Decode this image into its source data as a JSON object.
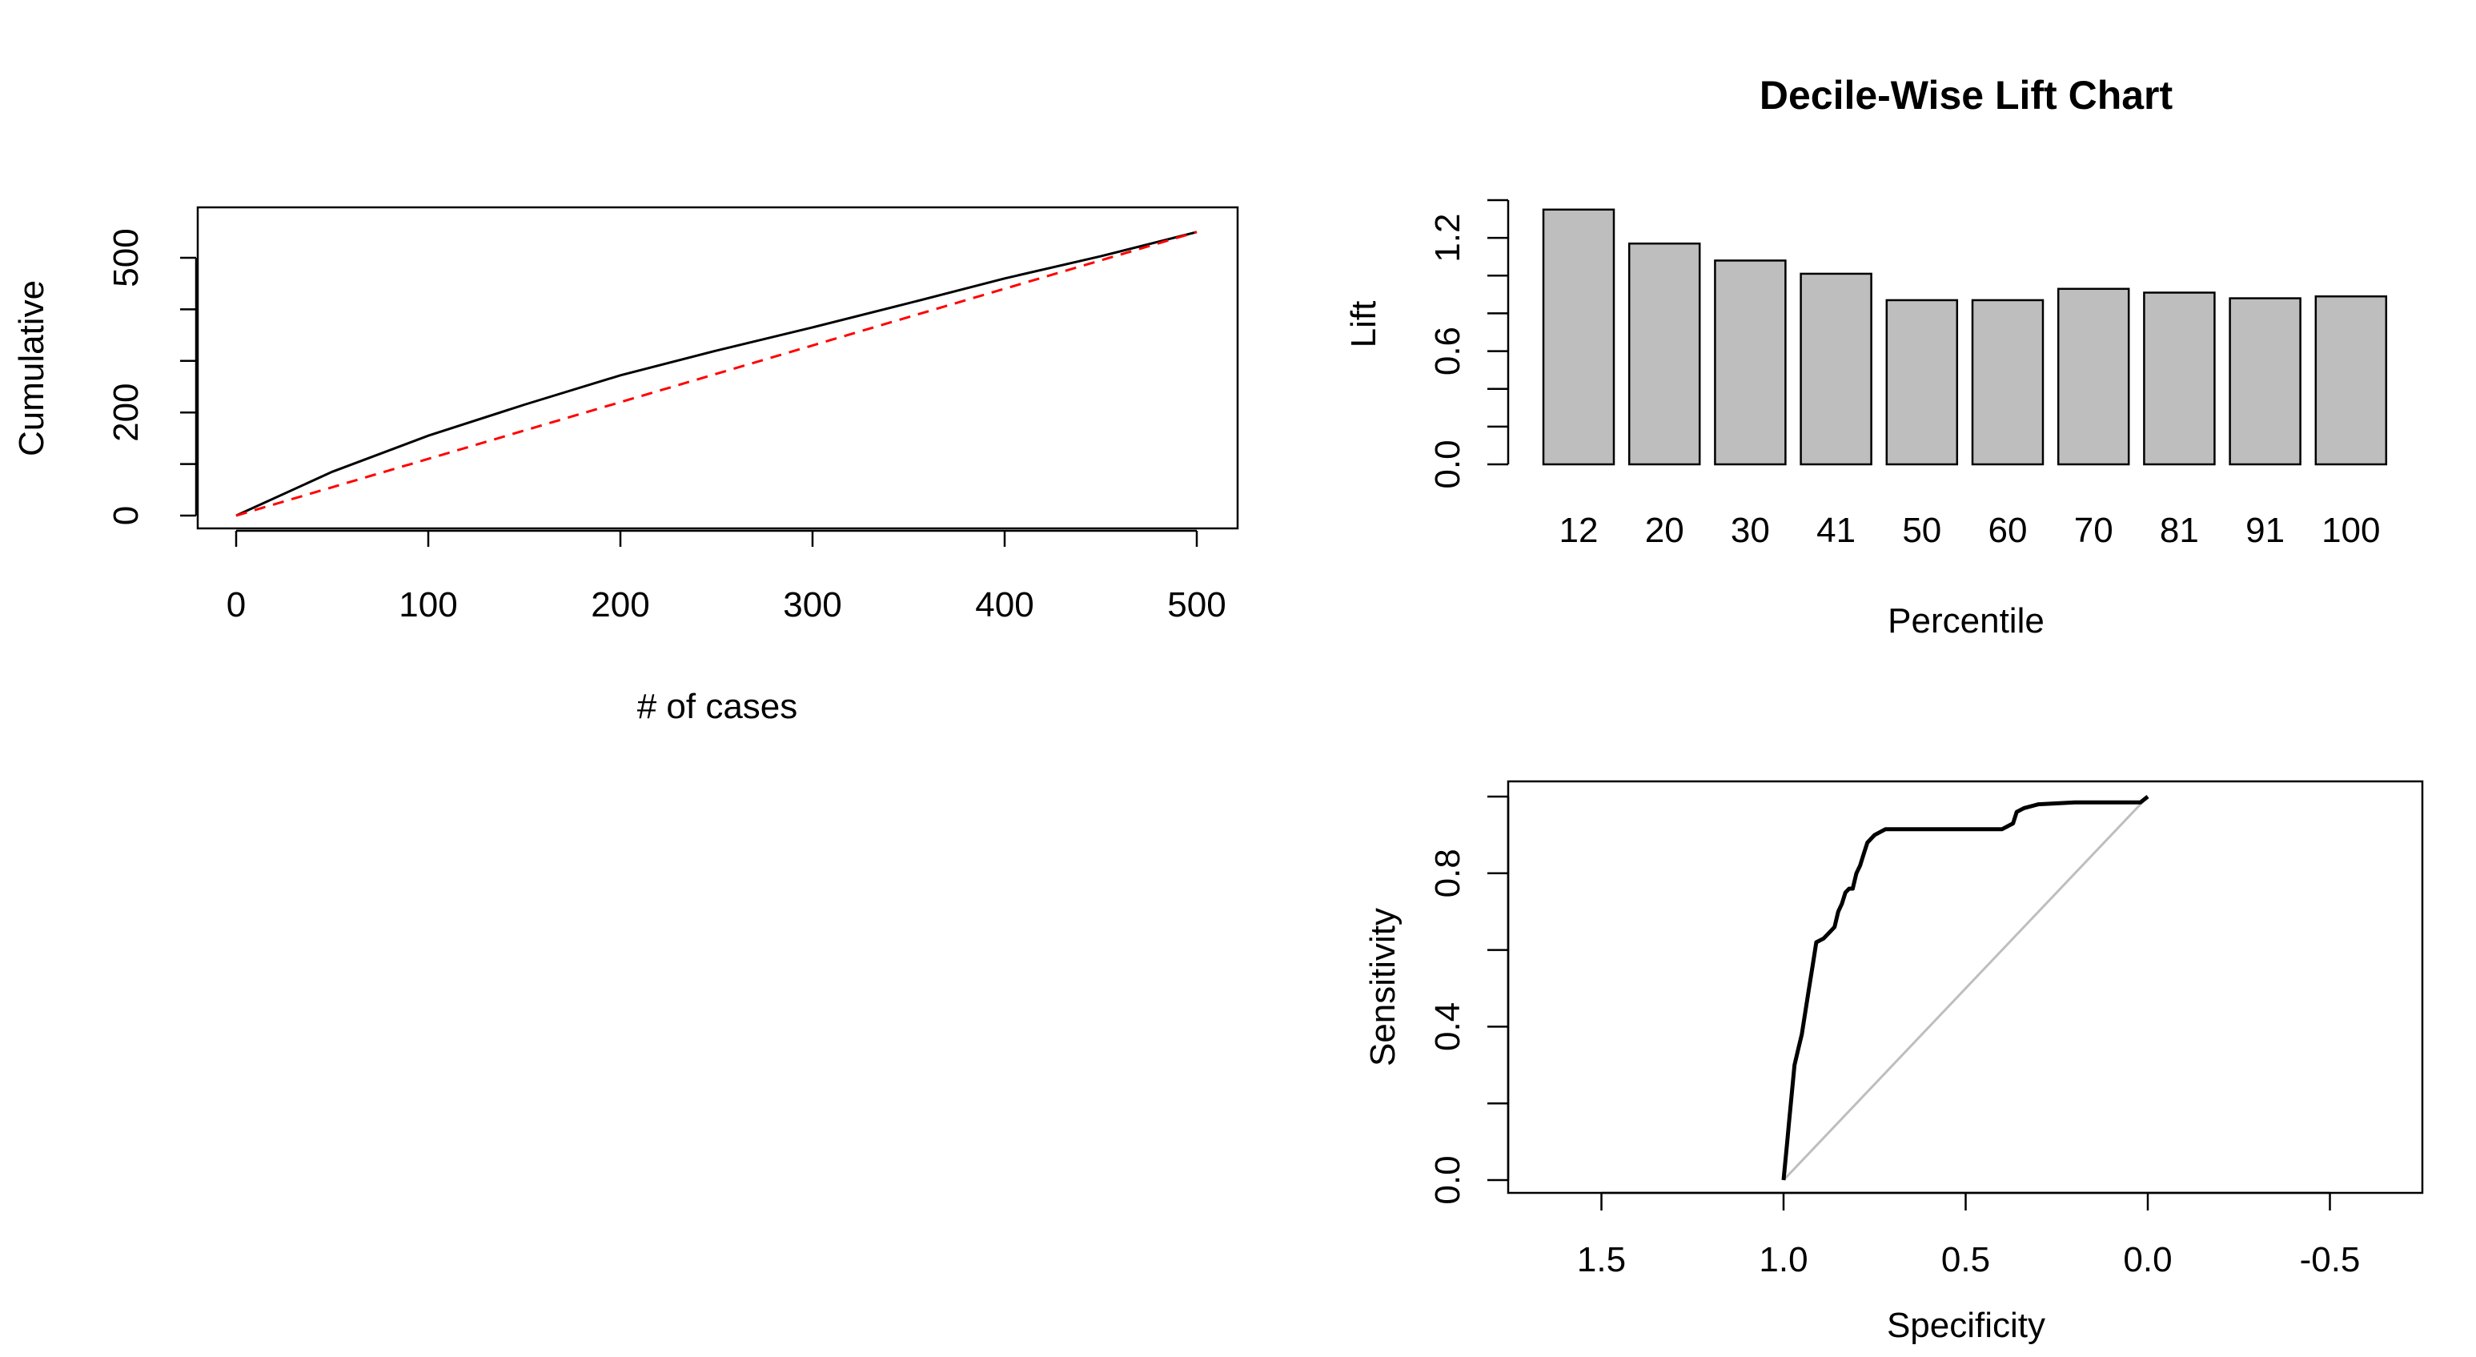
{
  "chart_data": [
    {
      "type": "line",
      "title": "",
      "xlabel": "# of cases",
      "ylabel": "Cumulative",
      "xlim": [
        0,
        500
      ],
      "ylim": [
        0,
        500
      ],
      "x_ticks": [
        0,
        100,
        200,
        300,
        400,
        500
      ],
      "y_ticks": [
        0,
        200,
        500
      ],
      "y_minor_ticks": [
        0,
        100,
        200,
        300,
        400,
        500
      ],
      "series": [
        {
          "color": "#000000",
          "dash": "solid",
          "x": [
            0,
            50,
            100,
            150,
            200,
            250,
            300,
            350,
            400,
            450,
            500
          ],
          "y": [
            0,
            85,
            155,
            215,
            272,
            320,
            365,
            412,
            460,
            503,
            550
          ]
        },
        {
          "color": "#ff0000",
          "dash": "dashed",
          "x": [
            0,
            500
          ],
          "y": [
            0,
            550
          ]
        }
      ],
      "grid": false
    },
    {
      "type": "bar",
      "title": "Decile-Wise Lift Chart",
      "xlabel": "Percentile",
      "ylabel": "Lift",
      "categories": [
        "12",
        "20",
        "30",
        "41",
        "50",
        "60",
        "70",
        "81",
        "91",
        "100"
      ],
      "values": [
        1.35,
        1.17,
        1.08,
        1.01,
        0.87,
        0.87,
        0.93,
        0.91,
        0.88,
        0.89
      ],
      "ylim": [
        0,
        1.4
      ],
      "y_ticks": [
        0.0,
        0.6,
        1.2
      ],
      "y_minor_ticks": [
        0.0,
        0.2,
        0.4,
        0.6,
        0.8,
        1.0,
        1.2,
        1.4
      ],
      "bar_color": "#bebebe",
      "grid": false
    },
    {
      "type": "line",
      "title": "",
      "xlabel": "Specificity",
      "ylabel": "Sensitivity",
      "x_reversed": true,
      "xlim": [
        1.7,
        -0.75
      ],
      "ylim": [
        0,
        1.04
      ],
      "x_ticks": [
        1.5,
        1.0,
        0.5,
        0.0,
        -0.5
      ],
      "x_tick_labels": [
        "1.5",
        "1.0",
        "0.5",
        "0.0",
        "-0.5"
      ],
      "y_ticks": [
        0.0,
        0.4,
        0.8
      ],
      "y_minor_ticks": [
        0.0,
        0.2,
        0.4,
        0.6,
        0.8,
        1.0
      ],
      "series": [
        {
          "color": "#000000",
          "x": [
            1.0,
            0.995,
            0.99,
            0.985,
            0.98,
            0.975,
            0.97,
            0.96,
            0.95,
            0.94,
            0.93,
            0.92,
            0.91,
            0.89,
            0.87,
            0.86,
            0.85,
            0.84,
            0.83,
            0.82,
            0.81,
            0.8,
            0.79,
            0.78,
            0.77,
            0.75,
            0.72,
            0.7,
            0.6,
            0.5,
            0.4,
            0.37,
            0.36,
            0.34,
            0.3,
            0.2,
            0.1,
            0.05,
            0.02,
            0.0
          ],
          "y": [
            0.0,
            0.05,
            0.1,
            0.15,
            0.2,
            0.25,
            0.3,
            0.34,
            0.38,
            0.44,
            0.5,
            0.56,
            0.62,
            0.63,
            0.65,
            0.66,
            0.7,
            0.72,
            0.75,
            0.76,
            0.76,
            0.8,
            0.82,
            0.85,
            0.88,
            0.9,
            0.915,
            0.915,
            0.915,
            0.915,
            0.915,
            0.93,
            0.96,
            0.97,
            0.98,
            0.985,
            0.985,
            0.985,
            0.985,
            1.0
          ]
        },
        {
          "color": "#bebebe",
          "x": [
            1.0,
            0.0
          ],
          "y": [
            0.0,
            1.0
          ]
        }
      ],
      "grid": false
    }
  ]
}
